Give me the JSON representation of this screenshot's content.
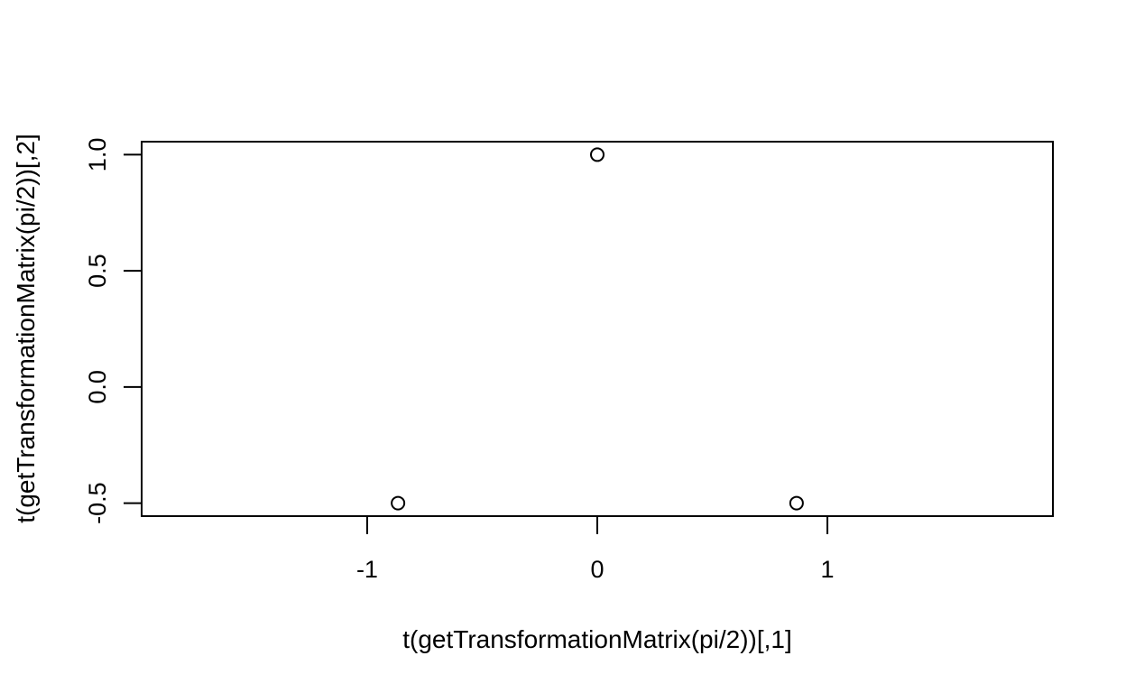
{
  "chart_data": {
    "type": "scatter",
    "title": "",
    "xlabel": "t(getTransformationMatrix(pi/2))[,1]",
    "ylabel": "t(getTransformationMatrix(pi/2))[,2]",
    "xlim": [
      -1.98,
      1.98
    ],
    "ylim": [
      -0.556,
      1.056
    ],
    "x_ticks": [
      {
        "value": -1,
        "label": "-1"
      },
      {
        "value": 0,
        "label": "0"
      },
      {
        "value": 1,
        "label": "1"
      }
    ],
    "y_ticks": [
      {
        "value": -0.5,
        "label": "-0.5"
      },
      {
        "value": 0.0,
        "label": "0.0"
      },
      {
        "value": 0.5,
        "label": "0.5"
      },
      {
        "value": 1.0,
        "label": "1.0"
      }
    ],
    "points": [
      {
        "x": 0.0,
        "y": 1.0
      },
      {
        "x": -0.866,
        "y": -0.5
      },
      {
        "x": 0.866,
        "y": -0.5
      }
    ],
    "marker": "open-circle",
    "grid": false,
    "legend": "none"
  }
}
